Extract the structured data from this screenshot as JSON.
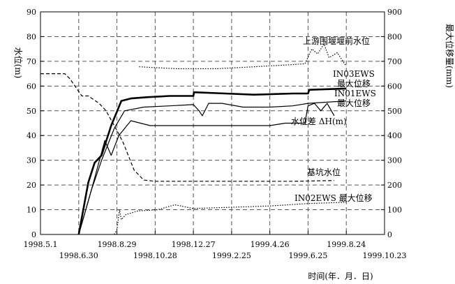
{
  "chart_data": {
    "type": "line",
    "xlabel": "时间(年．月．日)",
    "ylabel_left": "水位(m)",
    "ylabel_right": "最大位移量(mm)",
    "x_ticks_upper": [
      "1998.5.1",
      "1998.8.29",
      "1998.12.27",
      "1999.4.26",
      "1999.8.24"
    ],
    "x_ticks_lower": [
      "1998.6.30",
      "1998.10.28",
      "1999.2.25",
      "1999.6.25",
      "1999.10.23"
    ],
    "y_left_ticks": [
      "0",
      "10",
      "20",
      "30",
      "40",
      "50",
      "60",
      "70",
      "80",
      "90"
    ],
    "y_right_ticks": [
      "0",
      "100",
      "200",
      "300",
      "400",
      "500",
      "600",
      "700",
      "800",
      "900"
    ],
    "y_left_range": [
      0,
      90
    ],
    "y_right_range": [
      0,
      900
    ],
    "x_range": [
      "1998-05-01",
      "1999-10-23"
    ],
    "grid": true,
    "annotations": [
      "上游围堰堰前水位",
      "IN03EWS",
      "最大位移",
      "IN01EWS",
      "最大位移",
      "水位差 ΔH(m)",
      "基坑水位",
      "IN02EWS 最大位移"
    ],
    "series": [
      {
        "name": "上游围堰堰前水位",
        "axis": "left",
        "style": "dotted",
        "x": [
          "1998-10-03",
          "1998-12-01",
          "1999-02-01",
          "1999-04-01",
          "1999-05-20",
          "1999-06-20",
          "1999-07-01",
          "1999-07-10",
          "1999-07-20",
          "1999-07-28",
          "1999-08-10",
          "1999-08-24"
        ],
        "y": [
          67.8,
          67.0,
          67.0,
          67.8,
          68.5,
          69.0,
          75.0,
          73.0,
          77.0,
          71.5,
          73.5,
          68.0
        ]
      },
      {
        "name": "IN03EWS 最大位移",
        "axis": "right",
        "style": "bold",
        "x": [
          "1998-06-30",
          "1998-07-15",
          "1998-07-25",
          "1998-08-05",
          "1998-08-20",
          "1998-09-05",
          "1998-09-20",
          "1998-10-15",
          "1998-11-20",
          "1998-12-27",
          "1998-12-28",
          "1999-02-15",
          "1999-04-01",
          "1999-06-01",
          "1999-06-25",
          "1999-06-27",
          "1999-08-24"
        ],
        "y": [
          0,
          210,
          290,
          320,
          440,
          540,
          550,
          555,
          560,
          560,
          575,
          570,
          565,
          570,
          570,
          585,
          590
        ]
      },
      {
        "name": "IN01EWS 最大位移",
        "axis": "right",
        "style": "solid",
        "x": [
          "1998-06-30",
          "1998-07-20",
          "1998-08-05",
          "1998-08-25",
          "1998-09-10",
          "1998-10-10",
          "1998-11-20",
          "1998-12-27",
          "1999-01-05",
          "1999-01-10",
          "1999-01-20",
          "1999-02-10",
          "1999-03-15",
          "1999-04-26",
          "1999-06-01",
          "1999-06-25",
          "1999-08-24"
        ],
        "y": [
          0,
          180,
          300,
          430,
          500,
          515,
          520,
          525,
          500,
          480,
          530,
          530,
          515,
          515,
          520,
          530,
          540
        ]
      },
      {
        "name": "水位差 ΔH(m)",
        "axis": "left",
        "style": "solid",
        "x": [
          "1998-06-30",
          "1998-07-20",
          "1998-08-10",
          "1998-08-20",
          "1998-09-01",
          "1998-09-20",
          "1998-10-20",
          "1998-11-28",
          "1998-12-27",
          "1999-02-25",
          "1999-04-26",
          "1999-05-20",
          "1999-06-20",
          "1999-06-25",
          "1999-07-05",
          "1999-07-15",
          "1999-07-25",
          "1999-08-05"
        ],
        "y": [
          0,
          18,
          38,
          32,
          40,
          46,
          44,
          44,
          44,
          44,
          44,
          45,
          45,
          52,
          53,
          50,
          53,
          48
        ]
      },
      {
        "name": "基坑水位",
        "axis": "left",
        "style": "dashed",
        "x": [
          "1998-05-01",
          "1998-06-08",
          "1998-06-16",
          "1998-07-05",
          "1998-07-15",
          "1998-08-01",
          "1998-08-12",
          "1998-08-29",
          "1998-09-08",
          "1998-09-25",
          "1998-10-10",
          "1998-10-28",
          "1999-01-01",
          "1999-06-01",
          "1999-08-05"
        ],
        "y": [
          65,
          65,
          63,
          56,
          56,
          53,
          50,
          42,
          37,
          26,
          22,
          21.5,
          21.5,
          21.5,
          21.8
        ]
      },
      {
        "name": "IN02EWS 最大位移",
        "axis": "right",
        "style": "dotted",
        "x": [
          "1998-08-25",
          "1998-08-29",
          "1998-09-02",
          "1998-09-05",
          "1998-09-12",
          "1998-10-01",
          "1998-11-01",
          "1998-11-28",
          "1998-12-27",
          "1999-02-25",
          "1999-04-26",
          "1999-06-25",
          "1999-08-24"
        ],
        "y": [
          0,
          20,
          100,
          60,
          80,
          95,
          100,
          120,
          105,
          110,
          115,
          125,
          130
        ]
      }
    ]
  }
}
